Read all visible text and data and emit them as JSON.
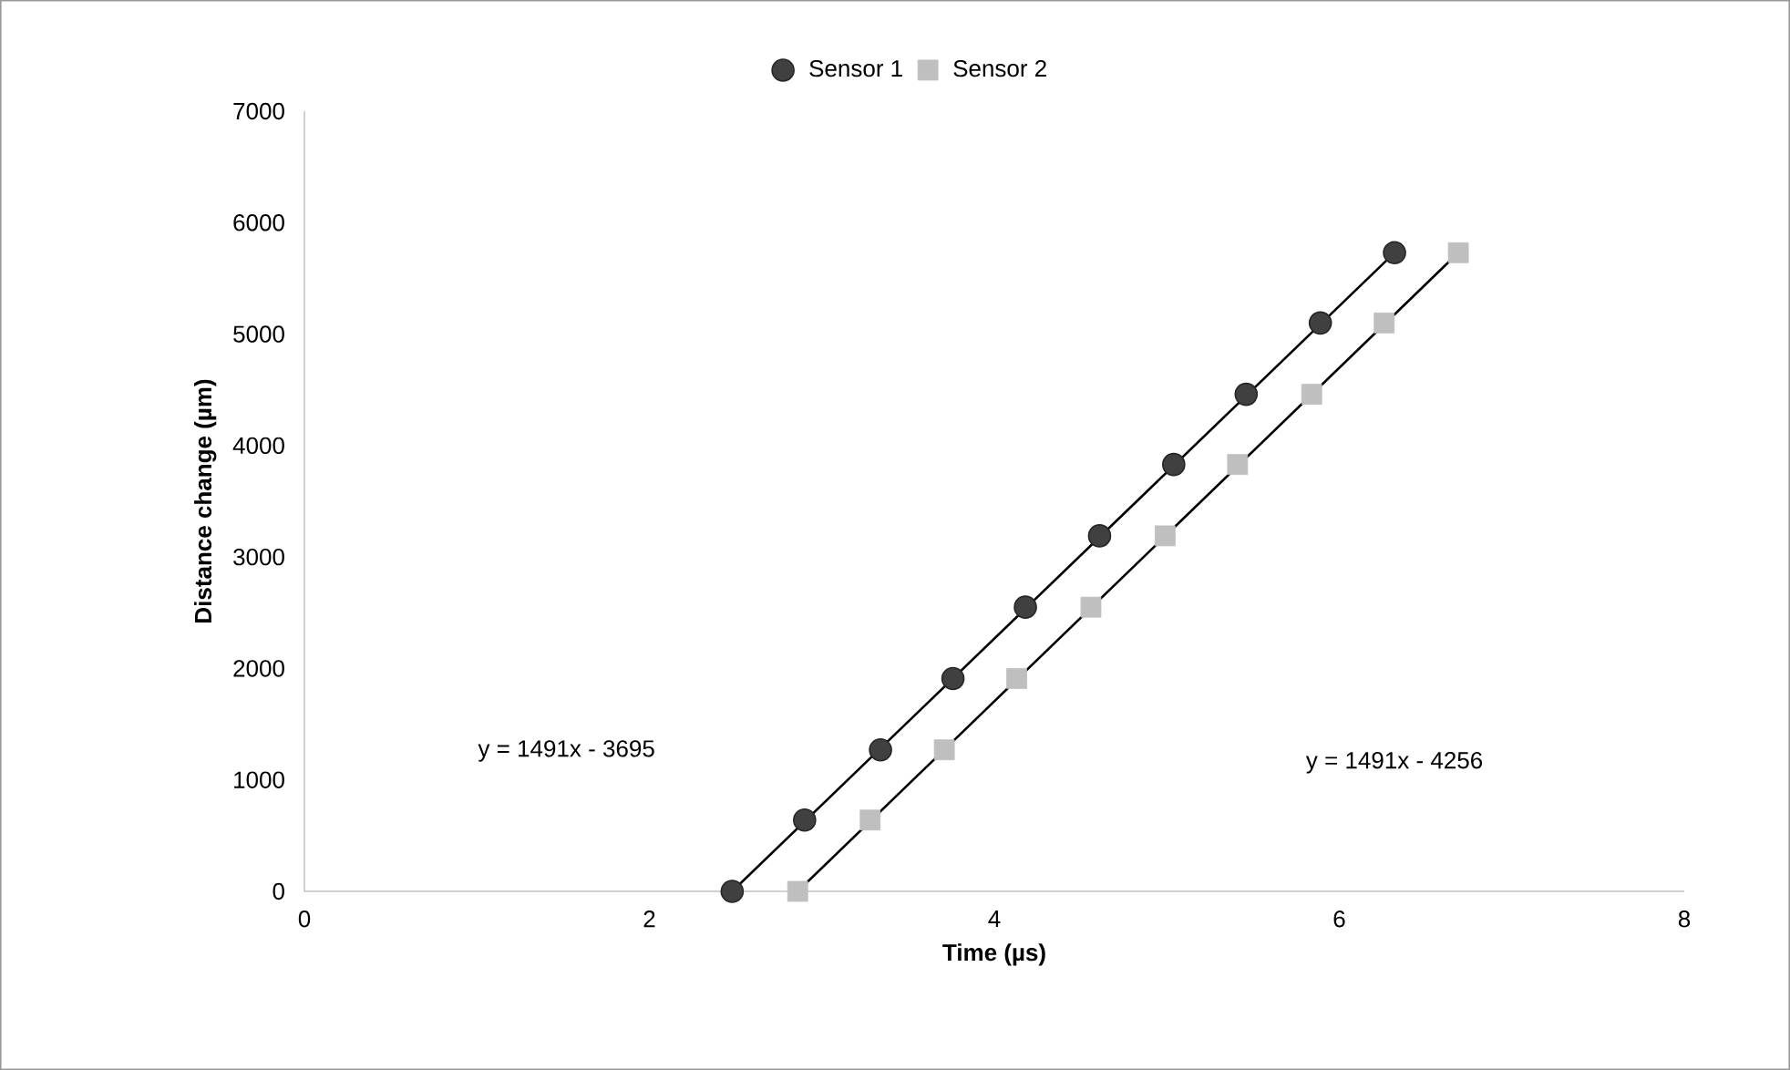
{
  "chart_data": {
    "type": "scatter",
    "xlabel": "Time (µs)",
    "ylabel": "Distance change (µm)",
    "xlim": [
      0,
      8
    ],
    "xticks": [
      0,
      2,
      4,
      6,
      8
    ],
    "ylim": [
      0,
      7000
    ],
    "yticks": [
      0,
      1000,
      2000,
      3000,
      4000,
      5000,
      6000,
      7000
    ],
    "grid": false,
    "legend": "top",
    "series": [
      {
        "name": "Sensor 1",
        "color": "#404040",
        "marker": "circle",
        "x": [
          2.48,
          2.9,
          3.34,
          3.76,
          4.18,
          4.61,
          5.04,
          5.46,
          5.89,
          6.32
        ],
        "values": [
          0,
          640,
          1270,
          1910,
          2550,
          3190,
          3830,
          4460,
          5100,
          5730
        ]
      },
      {
        "name": "Sensor 2",
        "color": "#bfbfbf",
        "marker": "square",
        "x": [
          2.86,
          3.28,
          3.71,
          4.13,
          4.56,
          4.99,
          5.41,
          5.84,
          6.26,
          6.69
        ],
        "values": [
          0,
          640,
          1270,
          1910,
          2550,
          3190,
          3830,
          4460,
          5100,
          5730
        ]
      },
      {
        "type": "line",
        "color": "#000000",
        "marker": "none",
        "x": [
          2.48,
          6.32
        ],
        "values": [
          0,
          5730
        ]
      },
      {
        "type": "line",
        "color": "#000000",
        "marker": "none",
        "x": [
          2.86,
          6.69
        ],
        "values": [
          0,
          5730
        ]
      }
    ],
    "annotations": [
      "y = 1491x - 3695",
      "y = 1491x - 4256"
    ]
  }
}
